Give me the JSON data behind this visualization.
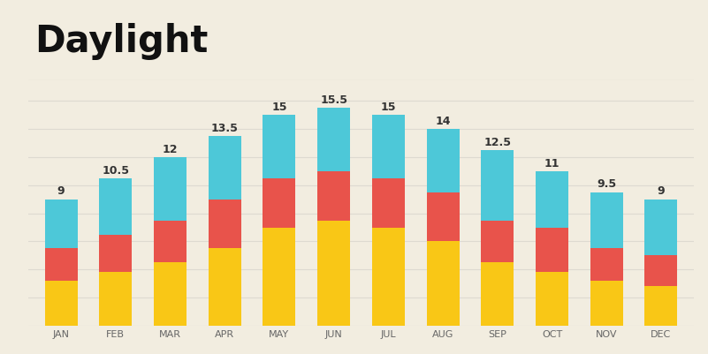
{
  "months": [
    "JAN",
    "FEB",
    "MAR",
    "APR",
    "MAY",
    "JUN",
    "JUL",
    "AUG",
    "SEP",
    "OCT",
    "NOV",
    "DEC"
  ],
  "total_hours": [
    9,
    10.5,
    12,
    13.5,
    15,
    15.5,
    15,
    14,
    12.5,
    11,
    9.5,
    9
  ],
  "yellow": [
    3.2,
    3.8,
    4.5,
    5.5,
    7.0,
    7.5,
    7.0,
    6.0,
    4.5,
    3.8,
    3.2,
    2.8
  ],
  "red": [
    2.3,
    2.7,
    3.0,
    3.5,
    3.5,
    3.5,
    3.5,
    3.5,
    3.0,
    3.2,
    2.3,
    2.2
  ],
  "cyan": [
    3.5,
    4.0,
    4.5,
    4.5,
    4.5,
    4.5,
    4.5,
    4.5,
    5.0,
    4.0,
    4.0,
    4.0
  ],
  "color_yellow": "#F9C716",
  "color_red": "#E8534B",
  "color_cyan": "#4DC8D8",
  "background_color": "#F2EDE0",
  "grid_color": "#DEDAD0",
  "title": "Daylight",
  "title_fontsize": 30,
  "label_fontsize": 9,
  "tick_fontsize": 8,
  "bar_width": 0.6,
  "ylim": [
    0,
    17.5
  ]
}
